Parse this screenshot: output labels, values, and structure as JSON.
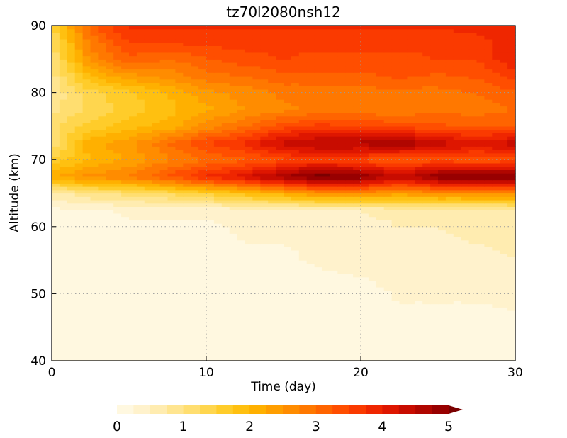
{
  "chart_data": {
    "type": "heatmap",
    "title": "tz70l2080nsh12",
    "xlabel": "Time (day)",
    "ylabel": "Altitude (km)",
    "xlim": [
      0,
      30
    ],
    "ylim": [
      40,
      90
    ],
    "x_ticks": [
      0,
      10,
      20,
      30
    ],
    "y_ticks": [
      40,
      50,
      60,
      70,
      80,
      90
    ],
    "grid": true,
    "colorbar": {
      "orientation": "horizontal",
      "position": "bottom",
      "ticks": [
        0,
        1,
        2,
        3,
        4,
        5
      ],
      "extend": "max",
      "levels": [
        0,
        0.25,
        0.5,
        0.75,
        1,
        1.25,
        1.5,
        1.75,
        2,
        2.25,
        2.5,
        2.75,
        3,
        3.25,
        3.5,
        3.75,
        4,
        4.25,
        4.5,
        4.75,
        5
      ],
      "colors": [
        "#fff8e0",
        "#fff2cc",
        "#ffecb0",
        "#ffe590",
        "#ffde70",
        "#ffd64e",
        "#ffcc2a",
        "#ffc010",
        "#ffb000",
        "#ff9e00",
        "#ff8c00",
        "#ff7800",
        "#ff6400",
        "#ff4e00",
        "#fa3a00",
        "#ef2600",
        "#de1600",
        "#c80c00",
        "#b00600",
        "#980000",
        "#7a0000"
      ]
    },
    "x": [
      0,
      2.5,
      5,
      7.5,
      10,
      12.5,
      15,
      17.5,
      20,
      22.5,
      25,
      27.5,
      30
    ],
    "y": [
      40,
      45,
      50,
      55,
      60,
      62.5,
      65,
      67.5,
      70,
      72.5,
      75,
      77.5,
      80,
      82.5,
      85,
      87.5,
      90
    ],
    "z": [
      [
        0.1,
        0.1,
        0.1,
        0.1,
        0.1,
        0.1,
        0.1,
        0.1,
        0.1,
        0.1,
        0.1,
        0.1,
        0.1
      ],
      [
        0.1,
        0.1,
        0.1,
        0.1,
        0.1,
        0.1,
        0.1,
        0.1,
        0.1,
        0.1,
        0.1,
        0.1,
        0.1
      ],
      [
        0.1,
        0.1,
        0.1,
        0.1,
        0.1,
        0.1,
        0.1,
        0.1,
        0.1,
        0.3,
        0.3,
        0.3,
        0.4
      ],
      [
        0.1,
        0.1,
        0.1,
        0.1,
        0.1,
        0.2,
        0.2,
        0.3,
        0.4,
        0.4,
        0.4,
        0.4,
        0.5
      ],
      [
        0.1,
        0.1,
        0.2,
        0.2,
        0.2,
        0.3,
        0.3,
        0.3,
        0.4,
        0.5,
        0.5,
        0.6,
        0.6
      ],
      [
        0.2,
        0.2,
        0.3,
        0.3,
        0.3,
        0.4,
        0.4,
        0.5,
        0.5,
        0.6,
        0.6,
        0.6,
        0.7
      ],
      [
        0.6,
        1.0,
        1.1,
        1.3,
        1.6,
        1.9,
        2.2,
        2.6,
        2.6,
        2.4,
        2.6,
        2.6,
        2.6
      ],
      [
        2.2,
        2.6,
        2.8,
        3.3,
        3.8,
        4.2,
        4.8,
        5.2,
        5.0,
        4.4,
        5.0,
        5.2,
        5.0
      ],
      [
        1.6,
        2.0,
        2.3,
        2.7,
        3.0,
        3.2,
        3.4,
        3.6,
        3.4,
        3.2,
        3.4,
        3.2,
        3.4
      ],
      [
        1.0,
        2.2,
        2.4,
        3.0,
        3.5,
        3.8,
        4.4,
        4.6,
        4.6,
        4.8,
        4.4,
        4.2,
        4.4
      ],
      [
        1.2,
        1.6,
        1.9,
        2.1,
        2.6,
        3.0,
        3.4,
        3.6,
        3.5,
        3.4,
        3.3,
        3.2,
        3.2
      ],
      [
        0.9,
        1.3,
        1.6,
        1.9,
        2.2,
        2.5,
        2.7,
        2.8,
        2.8,
        2.8,
        2.9,
        2.9,
        3.0
      ],
      [
        0.8,
        1.4,
        1.7,
        2.0,
        2.4,
        2.6,
        2.8,
        2.8,
        2.9,
        2.9,
        2.9,
        3.0,
        3.2
      ],
      [
        0.9,
        2.0,
        2.4,
        2.6,
        2.9,
        3.0,
        3.2,
        3.2,
        3.2,
        3.3,
        3.2,
        3.3,
        3.6
      ],
      [
        1.0,
        2.6,
        3.2,
        3.0,
        3.2,
        3.4,
        3.5,
        3.4,
        3.4,
        3.4,
        3.5,
        3.5,
        4.0
      ],
      [
        1.2,
        2.8,
        3.5,
        3.5,
        3.6,
        3.6,
        3.6,
        3.6,
        3.6,
        3.6,
        3.6,
        3.7,
        3.8
      ],
      [
        1.4,
        3.2,
        3.8,
        3.8,
        3.8,
        3.8,
        3.8,
        3.8,
        3.8,
        3.8,
        3.8,
        3.8,
        3.8
      ]
    ]
  }
}
